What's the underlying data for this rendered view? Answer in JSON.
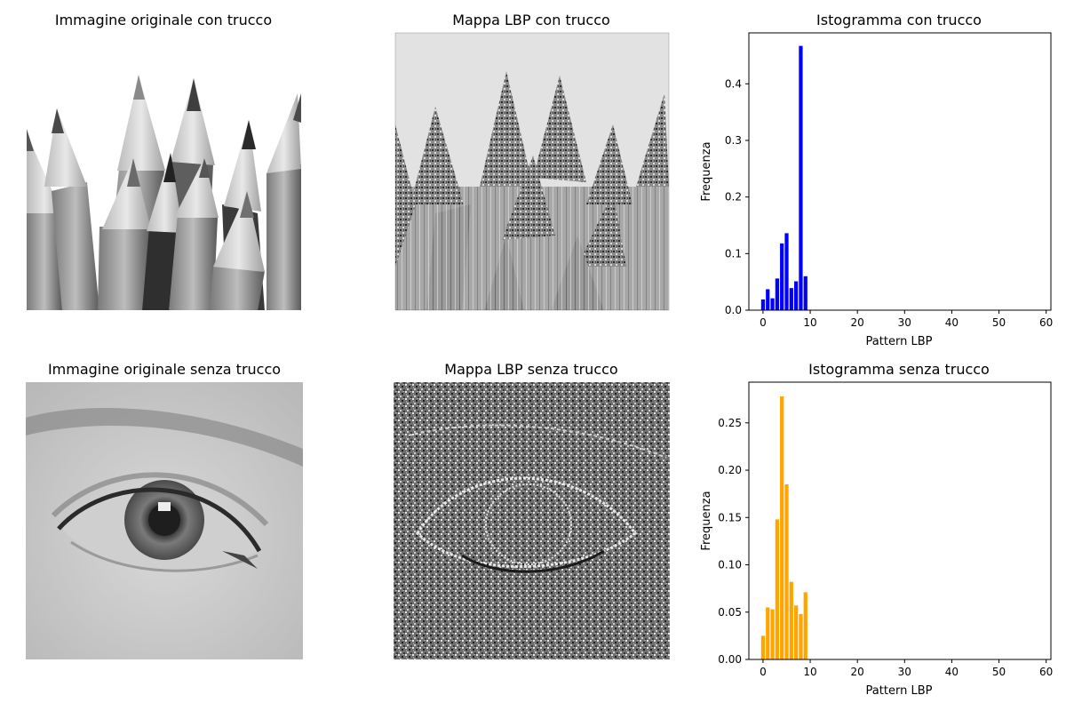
{
  "panels": {
    "img_con": {
      "title": "Immagine originale con trucco",
      "image": "colored-pencils-grayscale"
    },
    "lbp_con": {
      "title": "Mappa LBP con trucco",
      "image": "lbp-map-pencils"
    },
    "img_senza": {
      "title": "Immagine originale senza trucco",
      "image": "eye-grayscale"
    },
    "lbp_senza": {
      "title": "Mappa LBP senza trucco",
      "image": "lbp-map-eye"
    }
  },
  "chart_data": [
    {
      "type": "bar",
      "title": "Istogramma con trucco",
      "xlabel": "Pattern LBP",
      "ylabel": "Frequenza",
      "x": [
        0,
        1,
        2,
        3,
        4,
        5,
        6,
        7,
        8,
        9
      ],
      "values": [
        0.019,
        0.037,
        0.021,
        0.056,
        0.118,
        0.136,
        0.039,
        0.051,
        0.467,
        0.06
      ],
      "xlim": [
        -3,
        61
      ],
      "ylim": [
        0,
        0.49
      ],
      "xticks": [
        0,
        10,
        20,
        30,
        40,
        50,
        60
      ],
      "yticks": [
        0.0,
        0.1,
        0.2,
        0.3,
        0.4
      ],
      "ytick_labels": [
        "0.0",
        "0.1",
        "0.2",
        "0.3",
        "0.4"
      ],
      "color": "#0000ff",
      "grid": false
    },
    {
      "type": "bar",
      "title": "Istogramma senza trucco",
      "xlabel": "Pattern LBP",
      "ylabel": "Frequenza",
      "x": [
        0,
        1,
        2,
        3,
        4,
        5,
        6,
        7,
        8,
        9
      ],
      "values": [
        0.025,
        0.055,
        0.053,
        0.148,
        0.278,
        0.185,
        0.082,
        0.057,
        0.048,
        0.071
      ],
      "xlim": [
        -3,
        61
      ],
      "ylim": [
        0,
        0.293
      ],
      "xticks": [
        0,
        10,
        20,
        30,
        40,
        50,
        60
      ],
      "yticks": [
        0.0,
        0.05,
        0.1,
        0.15,
        0.2,
        0.25
      ],
      "ytick_labels": [
        "0.00",
        "0.05",
        "0.10",
        "0.15",
        "0.20",
        "0.25"
      ],
      "color": "#ffa500",
      "grid": false
    }
  ]
}
